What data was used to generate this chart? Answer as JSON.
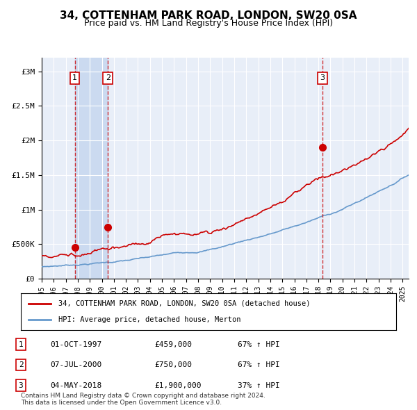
{
  "title": "34, COTTENHAM PARK ROAD, LONDON, SW20 0SA",
  "subtitle": "Price paid vs. HM Land Registry's House Price Index (HPI)",
  "title_fontsize": 13,
  "subtitle_fontsize": 11,
  "xlabel": "",
  "ylabel": "",
  "ylim": [
    0,
    3200000
  ],
  "xlim_start": 1995.0,
  "xlim_end": 2025.5,
  "background_color": "#ffffff",
  "plot_bg_color": "#e8eef8",
  "grid_color": "#ffffff",
  "sale1_date": 1997.75,
  "sale1_price": 459000,
  "sale2_date": 2000.5,
  "sale2_price": 750000,
  "sale3_date": 2018.33,
  "sale3_price": 1900000,
  "red_line_color": "#cc0000",
  "blue_line_color": "#6699cc",
  "sale_dot_color": "#cc0000",
  "dashed_line_color": "#cc0000",
  "shade1_start": 1997.75,
  "shade1_end": 2000.5,
  "shade_color": "#c8d8f0",
  "shade_alpha": 0.5,
  "legend_label_red": "34, COTTENHAM PARK ROAD, LONDON, SW20 0SA (detached house)",
  "legend_label_blue": "HPI: Average price, detached house, Merton",
  "table_entries": [
    {
      "num": 1,
      "date": "01-OCT-1997",
      "price": "£459,000",
      "pct": "67% ↑ HPI"
    },
    {
      "num": 2,
      "date": "07-JUL-2000",
      "price": "£750,000",
      "pct": "67% ↑ HPI"
    },
    {
      "num": 3,
      "date": "04-MAY-2018",
      "price": "£1,900,000",
      "pct": "37% ↑ HPI"
    }
  ],
  "footnote": "Contains HM Land Registry data © Crown copyright and database right 2024.\nThis data is licensed under the Open Government Licence v3.0.",
  "ytick_labels": [
    "£0",
    "£500K",
    "£1M",
    "£1.5M",
    "£2M",
    "£2.5M",
    "£3M"
  ],
  "ytick_values": [
    0,
    500000,
    1000000,
    1500000,
    2000000,
    2500000,
    3000000
  ],
  "xtick_years": [
    1995,
    1996,
    1997,
    1998,
    1999,
    2000,
    2001,
    2002,
    2003,
    2004,
    2005,
    2006,
    2007,
    2008,
    2009,
    2010,
    2011,
    2012,
    2013,
    2014,
    2015,
    2016,
    2017,
    2018,
    2019,
    2020,
    2021,
    2022,
    2023,
    2024,
    2025
  ]
}
